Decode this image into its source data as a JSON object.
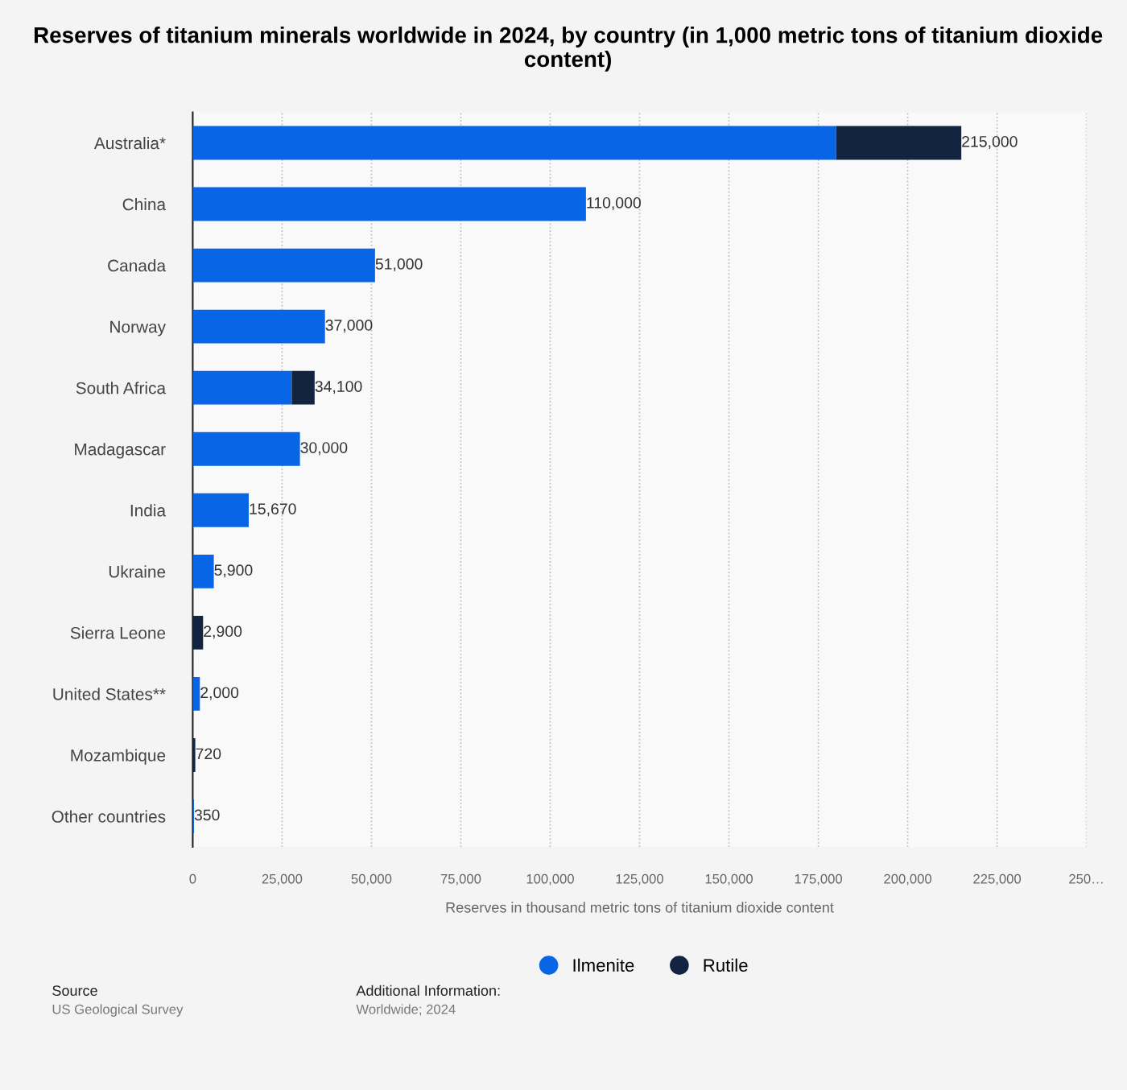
{
  "chart_data": {
    "type": "bar",
    "orientation": "horizontal",
    "stacked": true,
    "title": "Reserves of titanium minerals worldwide in 2024, by country (in 1,000 metric tons of titanium dioxide content)",
    "xlabel": "Reserves in thousand metric tons of titanium dioxide content",
    "categories": [
      "Australia*",
      "China",
      "Canada",
      "Norway",
      "South Africa",
      "Madagascar",
      "India",
      "Ukraine",
      "Sierra Leone",
      "United States**",
      "Mozambique",
      "Other countries"
    ],
    "series": [
      {
        "name": "Ilmenite",
        "color": "#0866e6",
        "values": [
          180000,
          110000,
          51000,
          37000,
          27700,
          30000,
          15670,
          5900,
          null,
          2000,
          null,
          350
        ]
      },
      {
        "name": "Rutile",
        "color": "#12243f",
        "values": [
          35000,
          null,
          null,
          null,
          6400,
          null,
          null,
          null,
          2900,
          null,
          720,
          null
        ]
      }
    ],
    "totals": [
      "215,000",
      "110,000",
      "51,000",
      "37,000",
      "34,100",
      "30,000",
      "15,670",
      "5,900",
      "2,900",
      "2,000",
      "720",
      "350"
    ],
    "xlim": [
      0,
      250000
    ],
    "xticks": [
      0,
      {
        "value": 25000,
        "label": "25,000"
      },
      {
        "value": 50000,
        "label": "50,000"
      },
      {
        "value": 75000,
        "label": "75,000"
      },
      {
        "value": 100000,
        "label": "100,000"
      },
      {
        "value": 125000,
        "label": "125,000"
      },
      {
        "value": 150000,
        "label": "150,000"
      },
      {
        "value": 175000,
        "label": "175,000"
      },
      {
        "value": 200000,
        "label": "200,000"
      },
      {
        "value": 225000,
        "label": "225,000"
      },
      {
        "value": 250000,
        "label": "250…"
      }
    ],
    "grid": "x",
    "legend": "bottom",
    "marker": "circle",
    "annotations": [
      "Source",
      "US Geological Survey",
      "Additional Information:",
      "Worldwide; 2024"
    ]
  }
}
